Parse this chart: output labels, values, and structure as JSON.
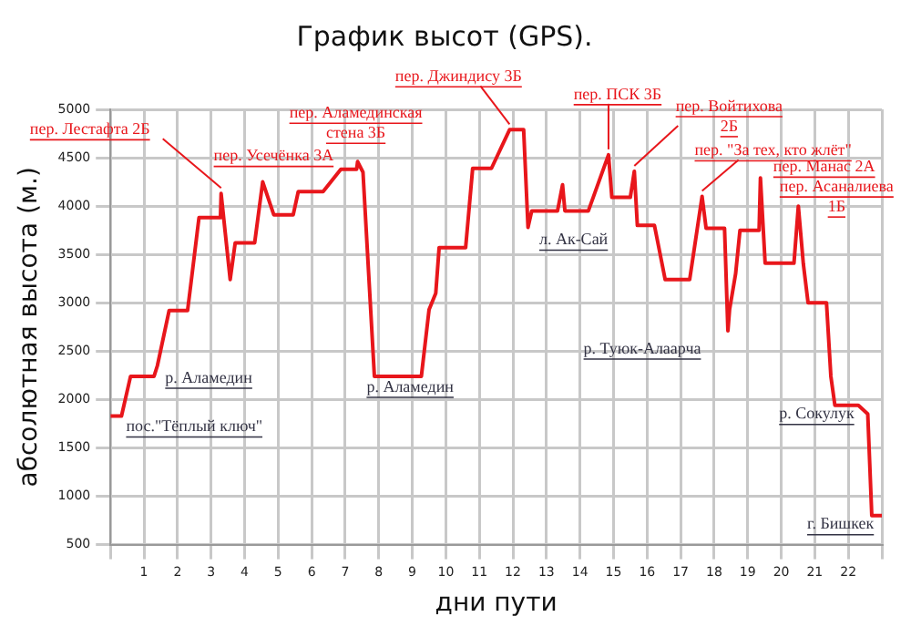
{
  "chart_data": {
    "type": "line",
    "title": "График высот (GPS).",
    "xlabel": "дни пути",
    "ylabel": "абсолютная высота (м.)",
    "x": [
      0,
      0.33,
      0.6,
      1.3,
      1.4,
      1.75,
      2.3,
      2.4,
      2.64,
      3.28,
      3.3,
      3.57,
      3.72,
      4.3,
      4.54,
      4.87,
      5.45,
      5.6,
      6.34,
      6.87,
      7.34,
      7.37,
      7.53,
      7.87,
      9.27,
      9.5,
      9.7,
      9.8,
      10.59,
      10.8,
      11.36,
      11.9,
      12.32,
      12.45,
      12.56,
      13.33,
      13.48,
      13.55,
      14.25,
      14.85,
      14.95,
      15.5,
      15.62,
      15.71,
      16.22,
      16.54,
      17.27,
      17.64,
      17.76,
      18.31,
      18.41,
      18.46,
      18.64,
      18.77,
      19.34,
      19.38,
      19.52,
      20.38,
      20.51,
      20.66,
      20.8,
      21.35,
      21.48,
      21.6,
      22.3,
      22.58,
      22.7,
      23
    ],
    "series": [
      {
        "color": "#e8161b",
        "values": [
          1830,
          1830,
          2240,
          2240,
          2350,
          2920,
          2920,
          3200,
          3880,
          3880,
          4130,
          3240,
          3620,
          3620,
          4250,
          3910,
          3910,
          4150,
          4150,
          4380,
          4380,
          4460,
          4350,
          2240,
          2240,
          2930,
          3100,
          3570,
          3570,
          4390,
          4390,
          4790,
          4790,
          3780,
          3950,
          3950,
          4220,
          3950,
          3950,
          4530,
          4090,
          4090,
          4360,
          3800,
          3800,
          3240,
          3240,
          4100,
          3770,
          3770,
          2710,
          2930,
          3300,
          3750,
          3750,
          4290,
          3410,
          3410,
          4000,
          3400,
          3000,
          3000,
          2240,
          1940,
          1940,
          1850,
          800,
          800
        ]
      }
    ],
    "xlim": [
      0,
      23
    ],
    "xticks": [
      {
        "value": 0,
        "label": null
      },
      1,
      2,
      3,
      4,
      5,
      6,
      7,
      8,
      9,
      10,
      11,
      12,
      13,
      14,
      15,
      16,
      17,
      18,
      19,
      20,
      21,
      22,
      {
        "value": 23,
        "label": null
      }
    ],
    "ylim": [
      500,
      5000
    ],
    "yticks": [
      500,
      1000,
      1500,
      2000,
      2500,
      3000,
      3500,
      4000,
      4500,
      5000
    ],
    "grid": true,
    "legend": false,
    "marker": "none",
    "line_style": "solid",
    "annotations": [
      {
        "text": "пер. Лестафта 2Б",
        "x": 3.3,
        "y": 4130
      },
      {
        "text": "пер. Усечёнка 3А",
        "x": 4.54,
        "y": 4250
      },
      {
        "text": "пер. Аламединская стена 3Б",
        "x": 7.37,
        "y": 4460
      },
      {
        "text": "пер. Джиндису 3Б",
        "x": 11.9,
        "y": 4790
      },
      {
        "text": "пер. ПСК 3Б",
        "x": 14.85,
        "y": 4530
      },
      {
        "text": "пер. Войтихова 2Б",
        "x": 15.62,
        "y": 4360
      },
      {
        "text": "пер. \"За тех, кто жлёт\"",
        "x": 17.64,
        "y": 4100
      },
      {
        "text": "пер. Манас 2А",
        "x": 19.38,
        "y": 4290
      },
      {
        "text": "пер. Асаналиева 1Б",
        "x": 20.51,
        "y": 4000
      },
      {
        "text": "пос.\"Тёплый ключ\"",
        "x": 0,
        "y": 1830
      },
      {
        "text": "р. Аламедин",
        "x": 1.3,
        "y": 2240
      },
      {
        "text": "р. Аламедин",
        "x": 8.5,
        "y": 2240
      },
      {
        "text": "л. Ак-Сай",
        "x": 12.45,
        "y": 3780
      },
      {
        "text": "р. Туюк-Алаарча",
        "x": 18.41,
        "y": 2710
      },
      {
        "text": "р. Сокулук",
        "x": 21.6,
        "y": 1940
      },
      {
        "text": "г. Бишкек",
        "x": 22.8,
        "y": 800
      }
    ]
  }
}
